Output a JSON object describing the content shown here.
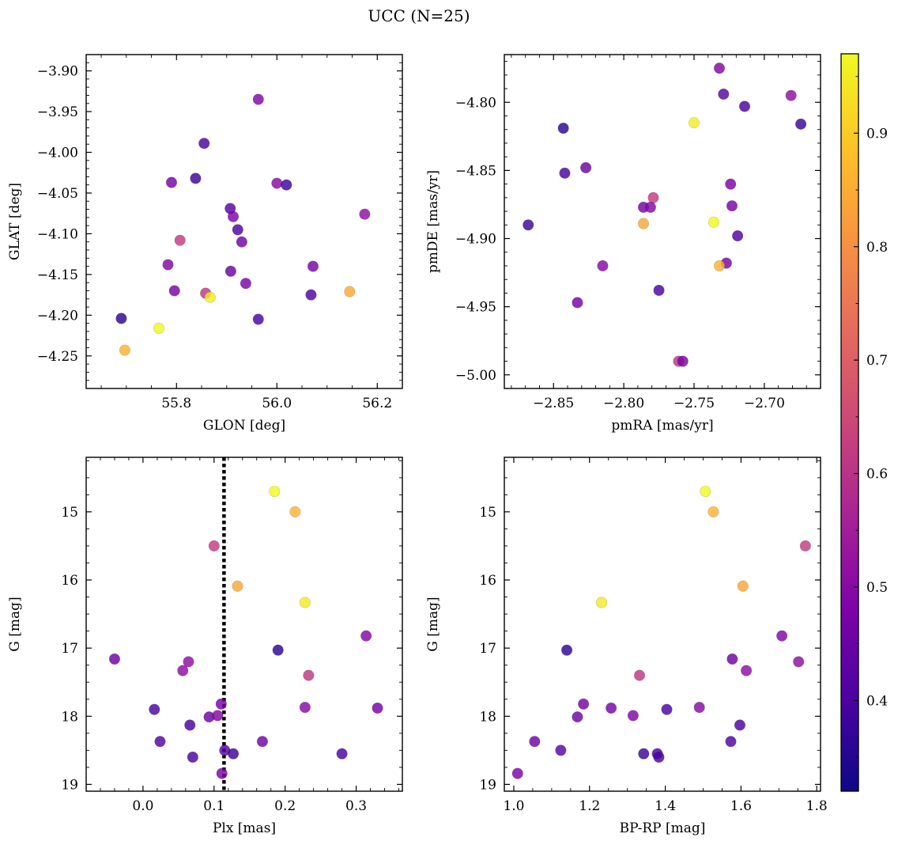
{
  "figure": {
    "title": "UCC (N=25)"
  },
  "colorbar": {
    "range": [
      0.32,
      0.97
    ],
    "ticks": [
      0.4,
      0.5,
      0.6,
      0.7,
      0.8,
      0.9
    ],
    "tick_labels": [
      "0.4",
      "0.5",
      "0.6",
      "0.7",
      "0.8",
      "0.9"
    ],
    "colormap": "plasma"
  },
  "chart_data": [
    {
      "type": "scatter",
      "xlabel": "GLON [deg]",
      "ylabel": "GLAT [deg]",
      "xlim": [
        55.62,
        56.25
      ],
      "ylim": [
        -4.29,
        -3.88
      ],
      "xticks": [
        55.8,
        56.0,
        56.2
      ],
      "xtick_labels": [
        "55.8",
        "56.0",
        "56.2"
      ],
      "xminor": [
        55.65,
        55.7,
        55.75,
        55.85,
        55.9,
        55.95,
        56.05,
        56.1,
        56.15,
        56.25
      ],
      "yticks": [
        -4.25,
        -4.2,
        -4.15,
        -4.1,
        -4.05,
        -4.0,
        -3.95,
        -3.9
      ],
      "ytick_labels": [
        "−4.25",
        "−4.20",
        "−4.15",
        "−4.10",
        "−4.05",
        "−4.00",
        "−3.95",
        "−3.90"
      ],
      "yminor": [
        -4.29,
        -4.28,
        -4.27,
        -4.26,
        -4.24,
        -4.23,
        -4.22,
        -4.21,
        -4.19,
        -4.18,
        -4.17,
        -4.16,
        -4.14,
        -4.13,
        -4.12,
        -4.11,
        -4.09,
        -4.08,
        -4.07,
        -4.06,
        -4.04,
        -4.03,
        -4.02,
        -4.01,
        -3.99,
        -3.98,
        -3.97,
        -3.96,
        -3.94,
        -3.93,
        -3.92,
        -3.91,
        -3.89,
        -3.88
      ],
      "invert_y": false,
      "points": [
        {
          "x": 55.963,
          "y": -3.935,
          "c": 0.49
        },
        {
          "x": 55.855,
          "y": -3.989,
          "c": 0.4
        },
        {
          "x": 55.838,
          "y": -4.032,
          "c": 0.38
        },
        {
          "x": 55.79,
          "y": -4.037,
          "c": 0.47
        },
        {
          "x": 56.0,
          "y": -4.038,
          "c": 0.5
        },
        {
          "x": 56.019,
          "y": -4.04,
          "c": 0.38
        },
        {
          "x": 55.907,
          "y": -4.069,
          "c": 0.42
        },
        {
          "x": 55.913,
          "y": -4.079,
          "c": 0.48
        },
        {
          "x": 56.175,
          "y": -4.076,
          "c": 0.51
        },
        {
          "x": 55.922,
          "y": -4.095,
          "c": 0.4
        },
        {
          "x": 55.807,
          "y": -4.108,
          "c": 0.62
        },
        {
          "x": 55.93,
          "y": -4.11,
          "c": 0.46
        },
        {
          "x": 55.783,
          "y": -4.138,
          "c": 0.49
        },
        {
          "x": 56.072,
          "y": -4.14,
          "c": 0.47
        },
        {
          "x": 55.908,
          "y": -4.146,
          "c": 0.45
        },
        {
          "x": 55.938,
          "y": -4.161,
          "c": 0.48
        },
        {
          "x": 55.796,
          "y": -4.17,
          "c": 0.47
        },
        {
          "x": 55.858,
          "y": -4.173,
          "c": 0.61
        },
        {
          "x": 55.867,
          "y": -4.178,
          "c": 0.95
        },
        {
          "x": 56.068,
          "y": -4.175,
          "c": 0.41
        },
        {
          "x": 56.145,
          "y": -4.171,
          "c": 0.84
        },
        {
          "x": 55.69,
          "y": -4.204,
          "c": 0.36
        },
        {
          "x": 55.963,
          "y": -4.205,
          "c": 0.4
        },
        {
          "x": 55.765,
          "y": -4.216,
          "c": 0.97
        },
        {
          "x": 55.697,
          "y": -4.243,
          "c": 0.86
        }
      ]
    },
    {
      "type": "scatter",
      "xlabel": "pmRA [mas/yr]",
      "ylabel": "pmDE [mas/yr]",
      "xlim": [
        -2.885,
        -2.66
      ],
      "ylim": [
        -5.01,
        -4.765
      ],
      "xticks": [
        -2.85,
        -2.8,
        -2.75,
        -2.7
      ],
      "xtick_labels": [
        "−2.85",
        "−2.80",
        "−2.75",
        "−2.70"
      ],
      "xminor": [
        -2.88,
        -2.87,
        -2.86,
        -2.84,
        -2.83,
        -2.82,
        -2.81,
        -2.79,
        -2.78,
        -2.77,
        -2.76,
        -2.74,
        -2.73,
        -2.72,
        -2.71,
        -2.69,
        -2.68,
        -2.67
      ],
      "yticks": [
        -5.0,
        -4.95,
        -4.9,
        -4.85,
        -4.8
      ],
      "ytick_labels": [
        "−5.00",
        "−4.95",
        "−4.90",
        "−4.85",
        "−4.80"
      ],
      "yminor": [
        -5.01,
        -4.99,
        -4.98,
        -4.97,
        -4.96,
        -4.94,
        -4.93,
        -4.92,
        -4.91,
        -4.89,
        -4.88,
        -4.87,
        -4.86,
        -4.84,
        -4.83,
        -4.82,
        -4.81,
        -4.79,
        -4.78,
        -4.77
      ],
      "invert_y": false,
      "points": [
        {
          "x": -2.732,
          "y": -4.775,
          "c": 0.49
        },
        {
          "x": -2.729,
          "y": -4.794,
          "c": 0.42
        },
        {
          "x": -2.681,
          "y": -4.795,
          "c": 0.51
        },
        {
          "x": -2.714,
          "y": -4.803,
          "c": 0.4
        },
        {
          "x": -2.75,
          "y": -4.815,
          "c": 0.95
        },
        {
          "x": -2.674,
          "y": -4.816,
          "c": 0.38
        },
        {
          "x": -2.843,
          "y": -4.819,
          "c": 0.36
        },
        {
          "x": -2.827,
          "y": -4.848,
          "c": 0.45
        },
        {
          "x": -2.842,
          "y": -4.852,
          "c": 0.4
        },
        {
          "x": -2.724,
          "y": -4.86,
          "c": 0.48
        },
        {
          "x": -2.779,
          "y": -4.87,
          "c": 0.62
        },
        {
          "x": -2.723,
          "y": -4.876,
          "c": 0.47
        },
        {
          "x": -2.786,
          "y": -4.877,
          "c": 0.46
        },
        {
          "x": -2.781,
          "y": -4.877,
          "c": 0.49
        },
        {
          "x": -2.868,
          "y": -4.89,
          "c": 0.38
        },
        {
          "x": -2.786,
          "y": -4.889,
          "c": 0.84
        },
        {
          "x": -2.736,
          "y": -4.888,
          "c": 0.97
        },
        {
          "x": -2.719,
          "y": -4.898,
          "c": 0.41
        },
        {
          "x": -2.815,
          "y": -4.92,
          "c": 0.5
        },
        {
          "x": -2.727,
          "y": -4.918,
          "c": 0.47
        },
        {
          "x": -2.732,
          "y": -4.92,
          "c": 0.86
        },
        {
          "x": -2.775,
          "y": -4.938,
          "c": 0.4
        },
        {
          "x": -2.833,
          "y": -4.947,
          "c": 0.47
        },
        {
          "x": -2.761,
          "y": -4.99,
          "c": 0.61
        },
        {
          "x": -2.758,
          "y": -4.99,
          "c": 0.48
        }
      ]
    },
    {
      "type": "scatter",
      "xlabel": "Plx [mas]",
      "ylabel": "G [mag]",
      "xlim": [
        -0.08,
        0.365
      ],
      "ylim": [
        19.1,
        14.2
      ],
      "xticks": [
        0.0,
        0.1,
        0.2,
        0.3
      ],
      "xtick_labels": [
        "0.0",
        "0.1",
        "0.2",
        "0.3"
      ],
      "xminor": [
        -0.06,
        -0.04,
        -0.02,
        0.02,
        0.04,
        0.06,
        0.08,
        0.12,
        0.14,
        0.16,
        0.18,
        0.22,
        0.24,
        0.26,
        0.28,
        0.32,
        0.34,
        0.36
      ],
      "yticks": [
        15,
        16,
        17,
        18,
        19
      ],
      "ytick_labels": [
        "15",
        "16",
        "17",
        "18",
        "19"
      ],
      "yminor": [
        14.25,
        14.5,
        14.75,
        15.25,
        15.5,
        15.75,
        16.25,
        16.5,
        16.75,
        17.25,
        17.5,
        17.75,
        18.25,
        18.5,
        18.75
      ],
      "invert_y": true,
      "vline": {
        "x": 0.114,
        "style": "dotted",
        "color": "#000000"
      },
      "points": [
        {
          "x": 0.185,
          "y": 14.7,
          "c": 0.97
        },
        {
          "x": 0.214,
          "y": 15.0,
          "c": 0.86
        },
        {
          "x": 0.1,
          "y": 15.5,
          "c": 0.62
        },
        {
          "x": 0.133,
          "y": 16.09,
          "c": 0.84
        },
        {
          "x": 0.228,
          "y": 16.33,
          "c": 0.95
        },
        {
          "x": 0.314,
          "y": 16.82,
          "c": 0.49
        },
        {
          "x": 0.19,
          "y": 17.03,
          "c": 0.36
        },
        {
          "x": -0.04,
          "y": 17.16,
          "c": 0.45
        },
        {
          "x": 0.064,
          "y": 17.2,
          "c": 0.51
        },
        {
          "x": 0.056,
          "y": 17.33,
          "c": 0.51
        },
        {
          "x": 0.233,
          "y": 17.4,
          "c": 0.61
        },
        {
          "x": 0.016,
          "y": 17.9,
          "c": 0.4
        },
        {
          "x": 0.11,
          "y": 17.82,
          "c": 0.47
        },
        {
          "x": 0.228,
          "y": 17.87,
          "c": 0.5
        },
        {
          "x": 0.33,
          "y": 17.88,
          "c": 0.47
        },
        {
          "x": 0.093,
          "y": 18.01,
          "c": 0.45
        },
        {
          "x": 0.105,
          "y": 17.99,
          "c": 0.49
        },
        {
          "x": 0.066,
          "y": 18.13,
          "c": 0.4
        },
        {
          "x": 0.024,
          "y": 18.37,
          "c": 0.41
        },
        {
          "x": 0.168,
          "y": 18.37,
          "c": 0.46
        },
        {
          "x": 0.115,
          "y": 18.5,
          "c": 0.42
        },
        {
          "x": 0.127,
          "y": 18.55,
          "c": 0.38
        },
        {
          "x": 0.28,
          "y": 18.55,
          "c": 0.4
        },
        {
          "x": 0.07,
          "y": 18.6,
          "c": 0.4
        },
        {
          "x": 0.111,
          "y": 18.84,
          "c": 0.48
        }
      ]
    },
    {
      "type": "scatter",
      "xlabel": "BP-RP [mag]",
      "ylabel": "G [mag]",
      "xlim": [
        0.975,
        1.81
      ],
      "ylim": [
        19.1,
        14.2
      ],
      "xticks": [
        1.0,
        1.2,
        1.4,
        1.6,
        1.8
      ],
      "xtick_labels": [
        "1.0",
        "1.2",
        "1.4",
        "1.6",
        "1.8"
      ],
      "xminor": [
        1.05,
        1.1,
        1.15,
        1.25,
        1.3,
        1.35,
        1.45,
        1.5,
        1.55,
        1.65,
        1.7,
        1.75
      ],
      "yticks": [
        15,
        16,
        17,
        18,
        19
      ],
      "ytick_labels": [
        "15",
        "16",
        "17",
        "18",
        "19"
      ],
      "yminor": [
        14.25,
        14.5,
        14.75,
        15.25,
        15.5,
        15.75,
        16.25,
        16.5,
        16.75,
        17.25,
        17.5,
        17.75,
        18.25,
        18.5,
        18.75
      ],
      "invert_y": true,
      "points": [
        {
          "x": 1.506,
          "y": 14.7,
          "c": 0.97
        },
        {
          "x": 1.527,
          "y": 15.0,
          "c": 0.86
        },
        {
          "x": 1.77,
          "y": 15.5,
          "c": 0.62
        },
        {
          "x": 1.605,
          "y": 16.09,
          "c": 0.84
        },
        {
          "x": 1.232,
          "y": 16.33,
          "c": 0.95
        },
        {
          "x": 1.708,
          "y": 16.82,
          "c": 0.49
        },
        {
          "x": 1.14,
          "y": 17.03,
          "c": 0.36
        },
        {
          "x": 1.577,
          "y": 17.16,
          "c": 0.45
        },
        {
          "x": 1.752,
          "y": 17.2,
          "c": 0.51
        },
        {
          "x": 1.614,
          "y": 17.33,
          "c": 0.51
        },
        {
          "x": 1.332,
          "y": 17.4,
          "c": 0.61
        },
        {
          "x": 1.184,
          "y": 17.82,
          "c": 0.47
        },
        {
          "x": 1.257,
          "y": 17.88,
          "c": 0.47
        },
        {
          "x": 1.49,
          "y": 17.87,
          "c": 0.5
        },
        {
          "x": 1.404,
          "y": 17.9,
          "c": 0.4
        },
        {
          "x": 1.168,
          "y": 18.01,
          "c": 0.45
        },
        {
          "x": 1.315,
          "y": 17.99,
          "c": 0.49
        },
        {
          "x": 1.597,
          "y": 18.13,
          "c": 0.4
        },
        {
          "x": 1.055,
          "y": 18.37,
          "c": 0.46
        },
        {
          "x": 1.573,
          "y": 18.37,
          "c": 0.41
        },
        {
          "x": 1.124,
          "y": 18.5,
          "c": 0.42
        },
        {
          "x": 1.343,
          "y": 18.55,
          "c": 0.38
        },
        {
          "x": 1.379,
          "y": 18.55,
          "c": 0.4
        },
        {
          "x": 1.383,
          "y": 18.6,
          "c": 0.4
        },
        {
          "x": 1.01,
          "y": 18.84,
          "c": 0.48
        }
      ]
    }
  ]
}
